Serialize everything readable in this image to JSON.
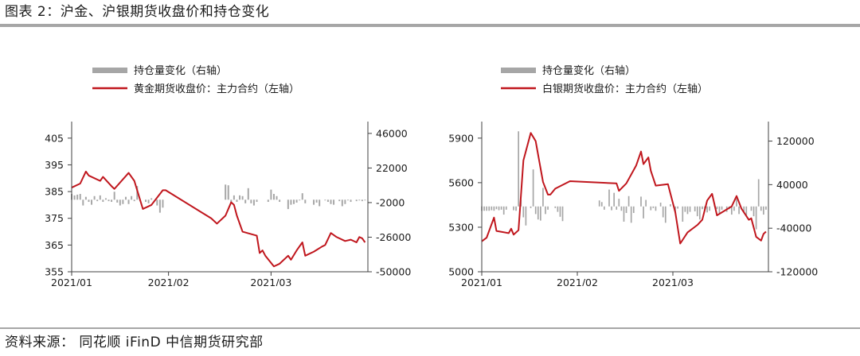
{
  "figure_title": "图表 2：沪金、沪银期货收盘价和持仓变化",
  "source": "资料来源：  同花顺 iFinD 中信期货研究部",
  "colors": {
    "line": "#c0161d",
    "bar": "#a6a6a6",
    "rule": "#a6a6a6"
  },
  "chart_data": [
    {
      "type": "bar+line",
      "legend_position": "top-left",
      "grid": false,
      "legend": {
        "bars": "持仓量变化（右轴）",
        "line": "黄金期货收盘价：主力合约（左轴）"
      },
      "x_ticks": [
        "2021/01",
        "2021/02",
        "2021/03"
      ],
      "y_left": {
        "ticks": [
          355,
          365,
          375,
          385,
          395,
          405
        ],
        "range": [
          355,
          410
        ]
      },
      "y_right": {
        "ticks": [
          -50000,
          -26000,
          -2000,
          22000,
          46000
        ],
        "tick_labels": [
          "-50000",
          "-26000",
          "-2000",
          "22000",
          "46000"
        ],
        "range": [
          -50000,
          52000
        ]
      },
      "line": [
        [
          1,
          386.5
        ],
        [
          4,
          388
        ],
        [
          6,
          392.5
        ],
        [
          7,
          391
        ],
        [
          11,
          389
        ],
        [
          12,
          390.5
        ],
        [
          15,
          387
        ],
        [
          16,
          386
        ],
        [
          21,
          392
        ],
        [
          23,
          389
        ],
        [
          26,
          378.5
        ],
        [
          29,
          380
        ],
        [
          33,
          385.5
        ],
        [
          34,
          385.5
        ],
        [
          50,
          375
        ],
        [
          52,
          373
        ],
        [
          55,
          376
        ],
        [
          57,
          381
        ],
        [
          58,
          380
        ],
        [
          59,
          376
        ],
        [
          61,
          370
        ],
        [
          66,
          368.5
        ],
        [
          67,
          362
        ],
        [
          68,
          363
        ],
        [
          69,
          361
        ],
        [
          72,
          357
        ],
        [
          74,
          358
        ],
        [
          77,
          361
        ],
        [
          78,
          359.5
        ],
        [
          80,
          363
        ],
        [
          82,
          366
        ],
        [
          83,
          361
        ],
        [
          86,
          362.5
        ],
        [
          89,
          364.5
        ],
        [
          90,
          365
        ],
        [
          92,
          369.5
        ],
        [
          94,
          368
        ],
        [
          97,
          366.5
        ],
        [
          99,
          367
        ],
        [
          101,
          366
        ],
        [
          102,
          368
        ],
        [
          103,
          367.5
        ],
        [
          104,
          366
        ]
      ],
      "bars": [
        [
          1,
          4000
        ],
        [
          2,
          3000
        ],
        [
          3,
          3500
        ],
        [
          4,
          4000
        ],
        [
          5,
          -4000
        ],
        [
          6,
          2000
        ],
        [
          7,
          -1500
        ],
        [
          8,
          -3500
        ],
        [
          9,
          2500
        ],
        [
          10,
          -1000
        ],
        [
          11,
          3000
        ],
        [
          12,
          -1500
        ],
        [
          13,
          1000
        ],
        [
          14,
          -1000
        ],
        [
          15,
          -1500
        ],
        [
          16,
          5500
        ],
        [
          17,
          -2000
        ],
        [
          18,
          -4000
        ],
        [
          19,
          -3000
        ],
        [
          20,
          2000
        ],
        [
          21,
          -3000
        ],
        [
          22,
          2500
        ],
        [
          23,
          -1000
        ],
        [
          24,
          9500
        ],
        [
          25,
          -1000
        ],
        [
          27,
          -1500
        ],
        [
          28,
          -2500
        ],
        [
          29,
          1000
        ],
        [
          31,
          -4000
        ],
        [
          32,
          -9000
        ],
        [
          33,
          -5500
        ],
        [
          55,
          10500
        ],
        [
          56,
          10000
        ],
        [
          57,
          -2000
        ],
        [
          58,
          3000
        ],
        [
          59,
          -1500
        ],
        [
          60,
          3000
        ],
        [
          61,
          2500
        ],
        [
          62,
          -2500
        ],
        [
          63,
          8000
        ],
        [
          64,
          -2500
        ],
        [
          65,
          -4000
        ],
        [
          66,
          -1500
        ],
        [
          70,
          -1500
        ],
        [
          71,
          7000
        ],
        [
          72,
          4000
        ],
        [
          73,
          2500
        ],
        [
          74,
          -1500
        ],
        [
          77,
          -6500
        ],
        [
          78,
          -3500
        ],
        [
          79,
          -3000
        ],
        [
          80,
          -2000
        ],
        [
          81,
          -500
        ],
        [
          82,
          4500
        ],
        [
          83,
          -2500
        ],
        [
          86,
          -3500
        ],
        [
          87,
          -2000
        ],
        [
          88,
          -4500
        ],
        [
          90,
          -500
        ],
        [
          91,
          -1500
        ],
        [
          92,
          -3000
        ],
        [
          93,
          -3500
        ],
        [
          95,
          -1000
        ],
        [
          96,
          -4500
        ],
        [
          97,
          -3000
        ],
        [
          98,
          -500
        ],
        [
          99,
          -1500
        ],
        [
          101,
          -1000
        ],
        [
          102,
          -500
        ],
        [
          103,
          -1000
        ],
        [
          104,
          -500
        ]
      ]
    },
    {
      "type": "bar+line",
      "legend_position": "top-left",
      "grid": false,
      "legend": {
        "bars": "持仓量变化（右轴）",
        "line": "白银期货收盘价：主力合约（左轴）"
      },
      "x_ticks": [
        "2021/01",
        "2021/02",
        "2021/03"
      ],
      "y_left": {
        "ticks": [
          5000,
          5300,
          5600,
          5900
        ],
        "range": [
          5000,
          5990
        ]
      },
      "y_right": {
        "ticks": [
          -120000,
          -40000,
          40000,
          120000
        ],
        "tick_labels": [
          "-120000",
          "-40000",
          "40000",
          "120000"
        ],
        "range": [
          -120000,
          150000
        ]
      },
      "line": [
        [
          1,
          5205
        ],
        [
          3,
          5230
        ],
        [
          6,
          5365
        ],
        [
          7,
          5275
        ],
        [
          12,
          5260
        ],
        [
          13,
          5290
        ],
        [
          14,
          5250
        ],
        [
          16,
          5280
        ],
        [
          18,
          5750
        ],
        [
          21,
          5935
        ],
        [
          23,
          5880
        ],
        [
          26,
          5605
        ],
        [
          28,
          5520
        ],
        [
          29,
          5520
        ],
        [
          31,
          5560
        ],
        [
          37,
          5610
        ],
        [
          56,
          5595
        ],
        [
          57,
          5545
        ],
        [
          60,
          5595
        ],
        [
          64,
          5715
        ],
        [
          66,
          5810
        ],
        [
          67,
          5725
        ],
        [
          69,
          5770
        ],
        [
          70,
          5680
        ],
        [
          72,
          5580
        ],
        [
          77,
          5590
        ],
        [
          80,
          5400
        ],
        [
          82,
          5190
        ],
        [
          85,
          5265
        ],
        [
          89,
          5315
        ],
        [
          91,
          5350
        ],
        [
          93,
          5480
        ],
        [
          95,
          5525
        ],
        [
          97,
          5380
        ],
        [
          103,
          5440
        ],
        [
          105,
          5510
        ],
        [
          107,
          5425
        ],
        [
          110,
          5350
        ],
        [
          111,
          5360
        ],
        [
          113,
          5235
        ],
        [
          115,
          5210
        ],
        [
          116,
          5255
        ],
        [
          117,
          5270
        ]
      ],
      "bars": [
        [
          1,
          -8000
        ],
        [
          2,
          -8000
        ],
        [
          3,
          -8000
        ],
        [
          4,
          -8000
        ],
        [
          5,
          -7000
        ],
        [
          6,
          -8000
        ],
        [
          7,
          -5000
        ],
        [
          8,
          -7000
        ],
        [
          9,
          -6000
        ],
        [
          10,
          -15000
        ],
        [
          11,
          -6000
        ],
        [
          14,
          -7000
        ],
        [
          15,
          -8000
        ],
        [
          16,
          138000
        ],
        [
          17,
          12000
        ],
        [
          18,
          -20000
        ],
        [
          19,
          -35000
        ],
        [
          21,
          -3000
        ],
        [
          22,
          68000
        ],
        [
          23,
          -14000
        ],
        [
          24,
          -24000
        ],
        [
          25,
          -26000
        ],
        [
          26,
          34000
        ],
        [
          27,
          -14000
        ],
        [
          28,
          -6000
        ],
        [
          31,
          -3000
        ],
        [
          32,
          -10000
        ],
        [
          33,
          -19000
        ],
        [
          34,
          -27000
        ],
        [
          49,
          11000
        ],
        [
          50,
          8000
        ],
        [
          51,
          -6000
        ],
        [
          53,
          31000
        ],
        [
          54,
          -7000
        ],
        [
          55,
          25000
        ],
        [
          56,
          -6000
        ],
        [
          57,
          14000
        ],
        [
          58,
          -8000
        ],
        [
          59,
          -28000
        ],
        [
          60,
          -12000
        ],
        [
          61,
          19000
        ],
        [
          62,
          -30000
        ],
        [
          63,
          -12000
        ],
        [
          66,
          18000
        ],
        [
          67,
          -22000
        ],
        [
          68,
          12000
        ],
        [
          70,
          -7000
        ],
        [
          71,
          -3000
        ],
        [
          72,
          -8000
        ],
        [
          74,
          7000
        ],
        [
          75,
          -20000
        ],
        [
          76,
          -30000
        ],
        [
          78,
          4000
        ],
        [
          80,
          -12000
        ],
        [
          81,
          -4000
        ],
        [
          83,
          -28000
        ],
        [
          84,
          -10000
        ],
        [
          85,
          -14000
        ],
        [
          86,
          -10000
        ],
        [
          88,
          -9000
        ],
        [
          89,
          -18000
        ],
        [
          90,
          -24000
        ],
        [
          91,
          -5000
        ],
        [
          92,
          -8000
        ],
        [
          93,
          -11000
        ],
        [
          94,
          -8000
        ],
        [
          96,
          6000
        ],
        [
          97,
          -5000
        ],
        [
          98,
          -13000
        ],
        [
          99,
          -6000
        ],
        [
          101,
          -10000
        ],
        [
          102,
          -5000
        ],
        [
          103,
          -15000
        ],
        [
          104,
          -8000
        ],
        [
          105,
          14000
        ],
        [
          106,
          -14000
        ],
        [
          108,
          -10000
        ],
        [
          109,
          -18000
        ],
        [
          111,
          -8000
        ],
        [
          112,
          -18000
        ],
        [
          113,
          -42000
        ],
        [
          114,
          50000
        ],
        [
          115,
          -8000
        ],
        [
          116,
          -15000
        ],
        [
          117,
          -6000
        ]
      ]
    }
  ]
}
